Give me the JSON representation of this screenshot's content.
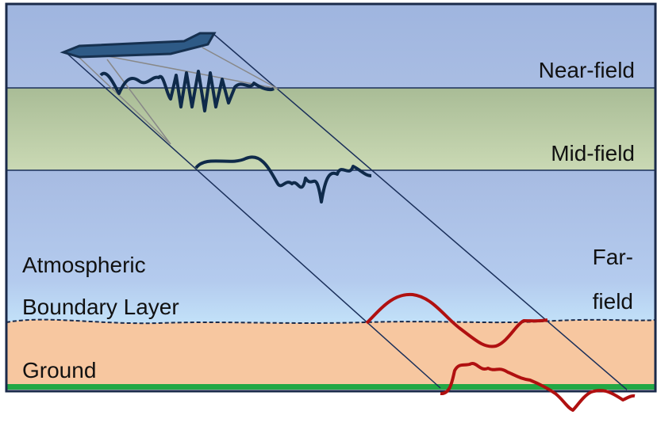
{
  "regions": {
    "near_field": "Near-field",
    "mid_field": "Mid-field",
    "far_field": [
      "Far-",
      "field"
    ],
    "boundary_layer": [
      "Atmospheric",
      "Boundary Layer"
    ],
    "ground": "Ground"
  }
}
